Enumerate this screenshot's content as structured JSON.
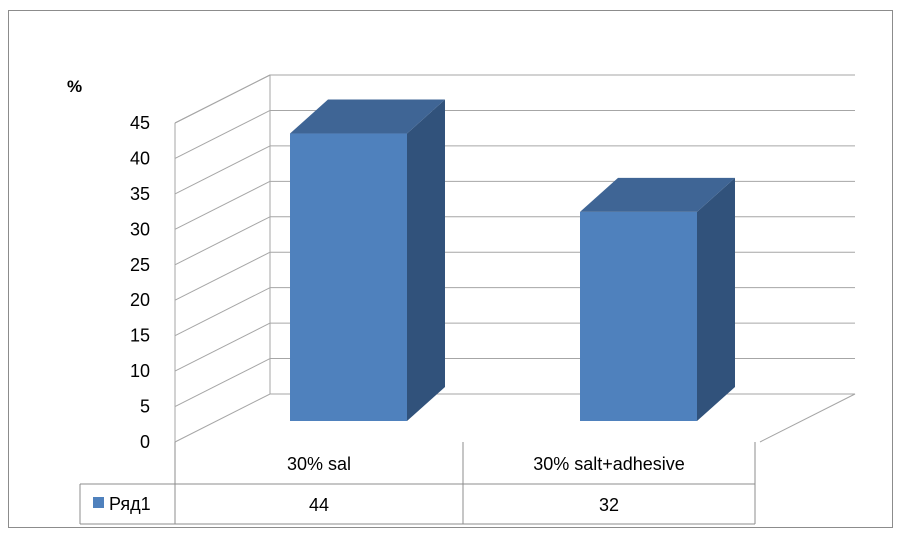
{
  "chart_data": {
    "type": "bar",
    "ylabel": "%",
    "ylim": [
      0,
      45
    ],
    "ytick_step": 5,
    "yticks": [
      "0",
      "5",
      "10",
      "15",
      "20",
      "25",
      "30",
      "35",
      "40",
      "45"
    ],
    "categories": [
      "30% sal",
      "30% salt+adhesive"
    ],
    "series": [
      {
        "name": "Ряд1",
        "values": [
          44,
          32
        ],
        "value_labels": [
          "44",
          "32"
        ]
      }
    ],
    "grid": true,
    "legend": "in data table",
    "data_table": true,
    "three_d": true,
    "colors": {
      "front": "#4f81bd",
      "side": "#31527b",
      "top": "#3f6595",
      "grid": "#a6a6a6",
      "table_border": "#8c8c8c"
    }
  }
}
